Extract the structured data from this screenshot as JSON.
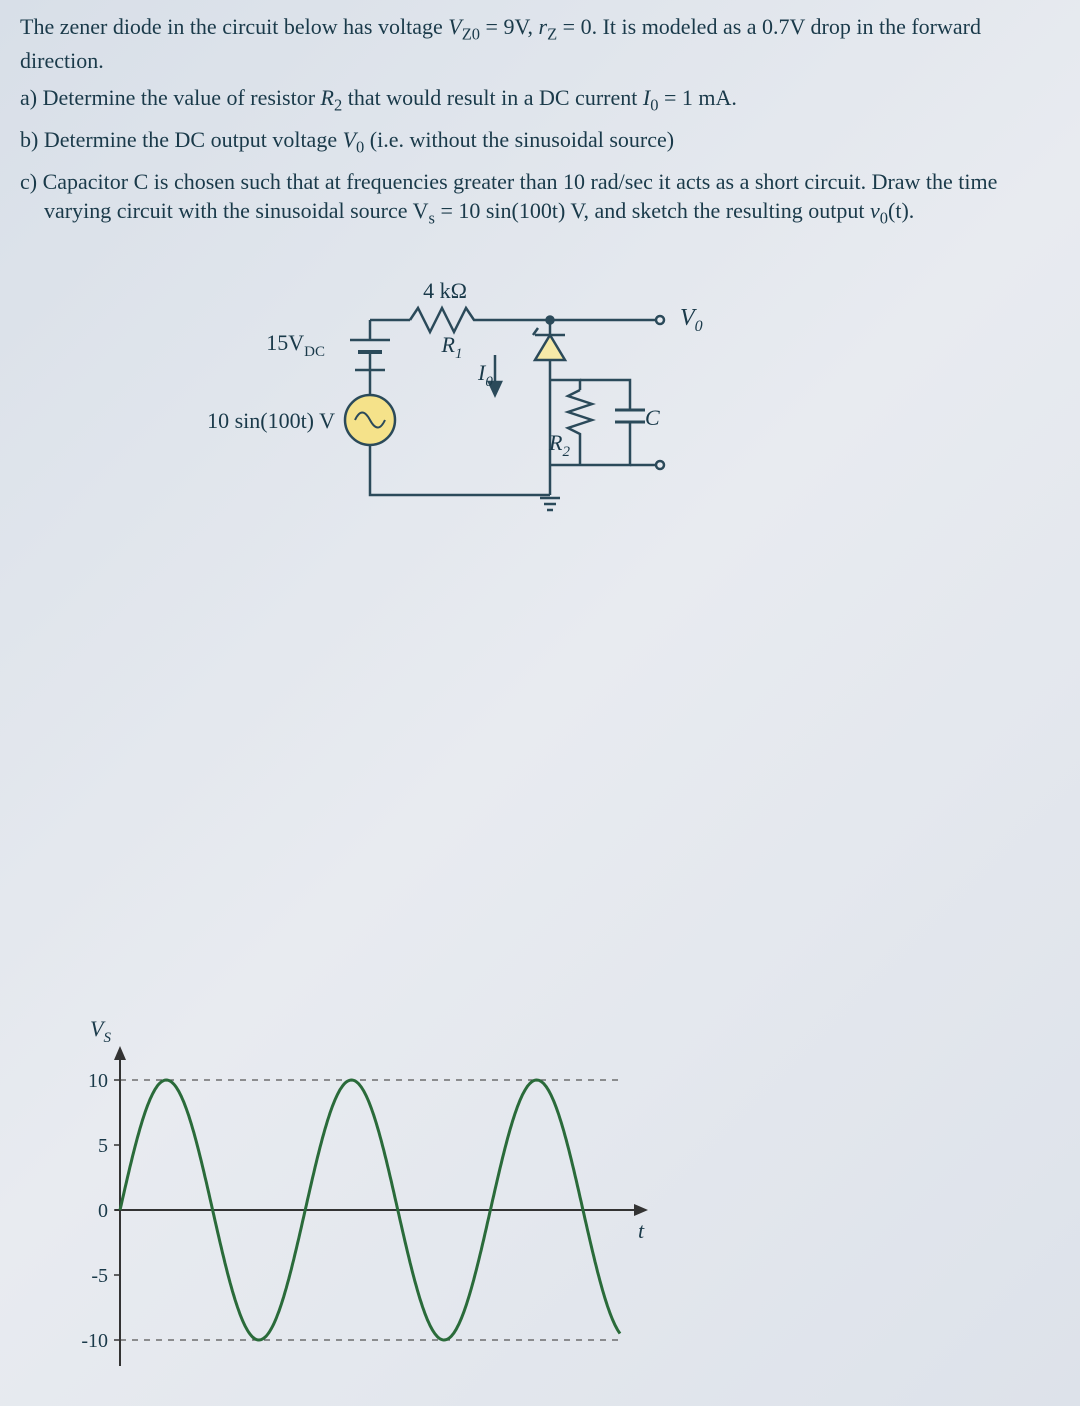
{
  "problem": {
    "intro": "The zener diode in the circuit below has voltage V_Z0 = 9V, r_Z = 0. It is modeled as a 0.7V drop in the forward direction.",
    "part_a": "a) Determine the value of resistor R_2 that would result in a DC current I_0 = 1 mA.",
    "part_b": "b) Determine the DC output voltage V_0 (i.e. without the sinusoidal source)",
    "part_c": "c) Capacitor C is chosen such that at frequencies greater than 10 rad/sec it acts as a short circuit. Draw the time varying circuit with the sinusoidal source V_s = 10 sin(100t) V, and sketch the resulting output v_0(t)."
  },
  "circuit": {
    "R1_value": "4 kΩ",
    "R1_label": "R_1",
    "R2_label": "R_2",
    "C_label": "C",
    "Vdc_label": "15V_DC",
    "Vac_label": "10 sin(100t) V",
    "I0_label": "I_0",
    "Vo_label": "V_0",
    "wire_color": "#2b4a5a",
    "fill_color": "#f5e9a8",
    "ac_fill": "#f5e28a"
  },
  "chart": {
    "type": "line",
    "ylabel": "V_S",
    "xlabel": "t",
    "yticks": [
      -10,
      -5,
      0,
      5,
      10
    ],
    "ylim": [
      -12,
      12
    ],
    "dashed_levels": [
      10,
      -10
    ],
    "amplitude": 10,
    "periods": 2.7,
    "line_color": "#2a6b3a",
    "line_width": 3,
    "axis_color": "#333333",
    "dash_color": "#555555",
    "background": "transparent"
  }
}
